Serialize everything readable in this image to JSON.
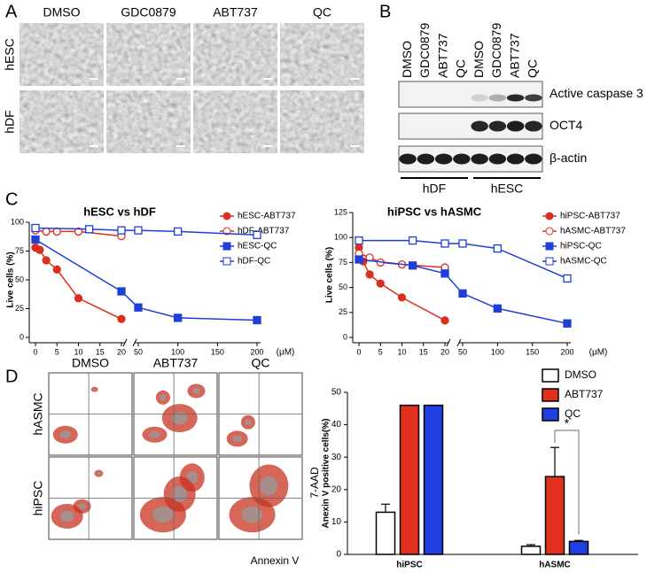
{
  "panel_labels": [
    "A",
    "B",
    "C",
    "D"
  ],
  "panel_a": {
    "columns": [
      "DMSO",
      "GDC0879",
      "ABT737",
      "QC"
    ],
    "rows": [
      "hESC",
      "hDF"
    ]
  },
  "panel_b": {
    "lanes": [
      "DMSO",
      "GDC0879",
      "ABT737",
      "QC",
      "DMSO",
      "GDC0879",
      "ABT737",
      "QC"
    ],
    "bands": [
      "Active caspase 3",
      "OCT4",
      "β-actin"
    ],
    "groups": [
      "hDF",
      "hESC"
    ]
  },
  "chart_data": [
    {
      "type": "line",
      "title": "hESC vs hDF",
      "y_label": "Live cells (%)",
      "x_unit": "(μM)",
      "xlim_segments": [
        [
          0,
          20
        ],
        [
          50,
          200
        ]
      ],
      "xticks": [
        0,
        5,
        10,
        15,
        20,
        50,
        100,
        150,
        200
      ],
      "ylim": [
        0,
        100
      ],
      "yticks": [
        0,
        25,
        50,
        75,
        100
      ],
      "legend": "upper right",
      "series": [
        {
          "name": "hESC-ABT737",
          "color": "#d9301f",
          "marker": "circle",
          "filled": true,
          "x": [
            0,
            1,
            2.5,
            5,
            10,
            20
          ],
          "values": [
            78,
            76,
            67,
            59,
            34,
            16
          ]
        },
        {
          "name": "hDF-ABT737",
          "color": "#d9301f",
          "marker": "circle",
          "filled": false,
          "x": [
            0,
            2.5,
            5,
            10,
            20
          ],
          "values": [
            93,
            92,
            92,
            92,
            88
          ]
        },
        {
          "name": "hESC-QC",
          "color": "#1f3fd9",
          "marker": "square",
          "filled": true,
          "x": [
            0,
            20,
            50,
            100,
            200
          ],
          "values": [
            85,
            40,
            26,
            17,
            15
          ]
        },
        {
          "name": "hDF-QC",
          "color": "#1f3fd9",
          "marker": "square",
          "filled": false,
          "x": [
            0,
            12.5,
            20,
            50,
            100,
            200
          ],
          "values": [
            95,
            94,
            93,
            93,
            92,
            89
          ]
        }
      ]
    },
    {
      "type": "line",
      "title": "hiPSC vs hASMC",
      "y_label": "Live cells (%)",
      "x_unit": "(μM)",
      "xlim_segments": [
        [
          0,
          20
        ],
        [
          50,
          200
        ]
      ],
      "xticks": [
        0,
        5,
        10,
        15,
        20,
        50,
        100,
        150,
        200
      ],
      "ylim": [
        0,
        125
      ],
      "yticks": [
        0,
        25,
        50,
        75,
        100,
        125
      ],
      "legend": "upper right",
      "series": [
        {
          "name": "hiPSC-ABT737",
          "color": "#d9301f",
          "marker": "circle",
          "filled": true,
          "x": [
            0,
            1,
            2.5,
            5,
            10,
            20
          ],
          "values": [
            90,
            76,
            63,
            54,
            40,
            17
          ]
        },
        {
          "name": "hASMC-ABT737",
          "color": "#d9301f",
          "marker": "circle",
          "filled": false,
          "x": [
            0,
            2.5,
            5,
            10,
            20
          ],
          "values": [
            84,
            80,
            75,
            73,
            70
          ]
        },
        {
          "name": "hiPSC-QC",
          "color": "#1f3fd9",
          "marker": "square",
          "filled": true,
          "x": [
            0,
            12.5,
            20,
            50,
            100,
            200
          ],
          "values": [
            78,
            72,
            64,
            44,
            29,
            14
          ]
        },
        {
          "name": "hASMC-QC",
          "color": "#1f3fd9",
          "marker": "square",
          "filled": false,
          "x": [
            0,
            12.5,
            20,
            50,
            100,
            200
          ],
          "values": [
            97,
            97,
            94,
            94,
            89,
            59
          ]
        }
      ]
    },
    {
      "type": "bar",
      "y_label": "Anexin V positive cells(%)",
      "categories": [
        "hiPSC",
        "hASMC"
      ],
      "ylim": [
        0,
        50
      ],
      "yticks": [
        0,
        10,
        20,
        30,
        40,
        50
      ],
      "legend": "upper right",
      "annotation": "*",
      "series": [
        {
          "name": "DMSO",
          "color": "#ffffff",
          "values": [
            13,
            2.5
          ],
          "errors": [
            2.5,
            0.5
          ]
        },
        {
          "name": "ABT737",
          "color": "#e0301e",
          "values": [
            46,
            24
          ],
          "errors": [
            null,
            9
          ]
        },
        {
          "name": "QC",
          "color": "#1f3fe0",
          "values": [
            46,
            4
          ],
          "errors": [
            null,
            0.3
          ]
        }
      ]
    }
  ],
  "panel_d": {
    "columns": [
      "DMSO",
      "ABT737",
      "QC"
    ],
    "rows": [
      "hASMC",
      "hiPSC"
    ],
    "y_axis_label": "7-AAD",
    "x_axis_label": "Annexin V"
  }
}
